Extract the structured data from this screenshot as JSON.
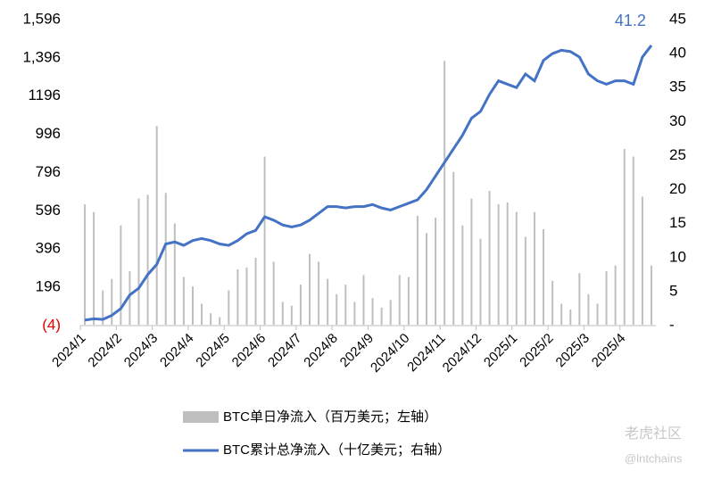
{
  "chart_data": {
    "type": "bar+line",
    "categories": [
      "2024/1",
      null,
      null,
      null,
      "2024/2",
      null,
      null,
      null,
      "2024/3",
      null,
      null,
      null,
      "2024/4",
      null,
      null,
      null,
      "2024/5",
      null,
      null,
      null,
      "2024/6",
      null,
      null,
      null,
      "2024/7",
      null,
      null,
      null,
      "2024/8",
      null,
      null,
      null,
      "2024/9",
      null,
      null,
      null,
      "2024/10",
      null,
      null,
      null,
      "2024/11",
      null,
      null,
      null,
      "2024/12",
      null,
      null,
      null,
      "2025/1",
      null,
      null,
      null,
      "2025/2",
      null,
      null,
      null,
      "2025/3",
      null,
      null,
      null,
      "2025/4",
      null,
      null,
      null
    ],
    "series": [
      {
        "name": "BTC单日净流入（百万美元；左轴）",
        "color": "#bfbfbf",
        "axis": "y",
        "values": [
          630,
          590,
          180,
          240,
          520,
          280,
          660,
          680,
          1040,
          690,
          530,
          250,
          200,
          110,
          60,
          40,
          180,
          290,
          300,
          350,
          880,
          330,
          120,
          100,
          210,
          370,
          330,
          240,
          160,
          210,
          120,
          260,
          140,
          90,
          130,
          260,
          250,
          570,
          480,
          560,
          1380,
          800,
          520,
          660,
          450,
          700,
          630,
          640,
          590,
          460,
          590,
          500,
          230,
          110,
          80,
          270,
          160,
          110,
          280,
          310,
          920,
          880,
          670,
          310
        ]
      },
      {
        "name": "BTC累计总净流入（十亿美元；右轴）",
        "color": "#4472c4",
        "axis": "y2",
        "values": [
          0.8,
          1.0,
          0.9,
          1.5,
          2.5,
          4.5,
          5.5,
          7.5,
          9.0,
          12.0,
          12.3,
          11.8,
          12.5,
          12.8,
          12.5,
          12.0,
          11.8,
          12.5,
          13.5,
          14.0,
          16.0,
          15.5,
          14.8,
          14.5,
          14.8,
          15.5,
          16.5,
          17.5,
          17.5,
          17.3,
          17.5,
          17.5,
          17.8,
          17.3,
          17.0,
          17.5,
          18.0,
          18.5,
          20.0,
          22.0,
          24.0,
          26.0,
          28.0,
          30.5,
          31.5,
          34.0,
          36.0,
          35.5,
          35.0,
          37.0,
          36.0,
          39.0,
          40.0,
          40.5,
          40.3,
          39.5,
          37.0,
          36.0,
          35.5,
          36.0,
          36.0,
          35.5,
          39.5,
          41.2
        ]
      }
    ],
    "ylim": [
      -4,
      1596
    ],
    "yticks": [
      {
        "value": -4,
        "label": "(4)"
      },
      196,
      396,
      596,
      796,
      996,
      1196,
      {
        "value": 1396,
        "label": "1,396"
      },
      {
        "value": 1596,
        "label": "1,596"
      }
    ],
    "y2lim": [
      0,
      45
    ],
    "y2ticks": [
      {
        "value": 0,
        "label": "-"
      },
      5,
      10,
      15,
      20,
      25,
      30,
      35,
      40,
      45
    ],
    "watermark": [
      "老虎社区",
      "@lntchains"
    ]
  }
}
